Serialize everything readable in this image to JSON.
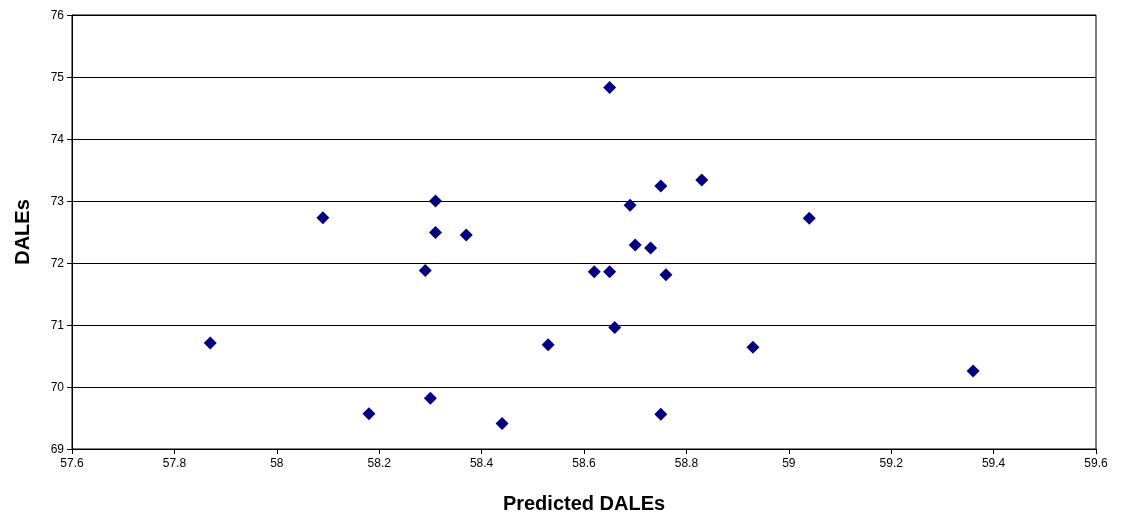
{
  "chart_data": {
    "type": "scatter",
    "xlabel": "Predicted DALEs",
    "ylabel": "DALEs",
    "xlim": [
      57.6,
      59.6
    ],
    "xticks": [
      57.6,
      57.8,
      58,
      58.2,
      58.4,
      58.6,
      58.8,
      59,
      59.2,
      59.4,
      59.6
    ],
    "ylim": [
      69,
      76
    ],
    "yticks": [
      69,
      70,
      71,
      72,
      73,
      74,
      75,
      76
    ],
    "grid": "y",
    "marker": "diamond",
    "series": [
      {
        "color": "#000080",
        "x": [
          57.87,
          58.09,
          58.18,
          58.31,
          58.31,
          58.37,
          58.29,
          58.3,
          58.44,
          58.53,
          58.65,
          58.75,
          58.83,
          58.69,
          59.04,
          58.7,
          58.73,
          58.62,
          58.65,
          58.76,
          58.66,
          58.93,
          59.36,
          58.75
        ],
        "values": [
          70.71,
          72.73,
          69.57,
          73.0,
          72.49,
          72.45,
          71.88,
          69.82,
          69.41,
          70.68,
          74.83,
          73.24,
          73.34,
          72.93,
          72.72,
          72.29,
          72.24,
          71.86,
          71.86,
          71.81,
          70.96,
          70.64,
          70.26,
          69.56
        ]
      }
    ]
  }
}
